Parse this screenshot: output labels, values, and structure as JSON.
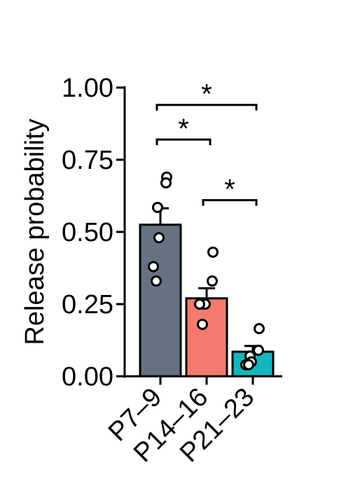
{
  "chart_data": {
    "type": "bar",
    "ylabel": "Release probability",
    "xlabel": "",
    "title": "",
    "ylim": [
      0,
      1.0
    ],
    "yticks": [
      0.0,
      0.25,
      0.5,
      0.75,
      1.0
    ],
    "ytick_labels": [
      "0.00",
      "0.25",
      "0.50",
      "0.75",
      "1.00"
    ],
    "categories": [
      "P7–9",
      "P14–16",
      "P21–23"
    ],
    "values": [
      0.525,
      0.27,
      0.085
    ],
    "errors": [
      0.057,
      0.035,
      0.02
    ],
    "colors": [
      "#657282",
      "#f47a6e",
      "#13b6bd"
    ],
    "points": [
      [
        0.69,
        0.67,
        0.585,
        0.48,
        0.38,
        0.33
      ],
      [
        0.43,
        0.33,
        0.25,
        0.25,
        0.25,
        0.18
      ],
      [
        0.165,
        0.09,
        0.07,
        0.05,
        0.04,
        0.04
      ]
    ],
    "grid": false,
    "significance": [
      {
        "from": 0,
        "to": 2,
        "y": 0.94,
        "label": "*"
      },
      {
        "from": 0,
        "to": 1,
        "y": 0.82,
        "label": "*"
      },
      {
        "from": 1,
        "to": 2,
        "y": 0.61,
        "label": "*"
      }
    ]
  }
}
